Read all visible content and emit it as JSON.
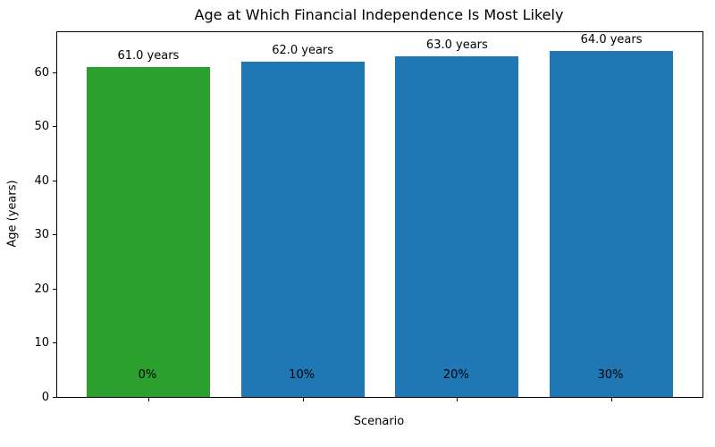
{
  "chart_data": {
    "type": "bar",
    "title": "Age at Which Financial Independence Is Most Likely",
    "xlabel": "Scenario",
    "ylabel": "Age (years)",
    "categories": [
      "0%",
      "10%",
      "20%",
      "30%"
    ],
    "values": [
      61.0,
      62.0,
      63.0,
      64.0
    ],
    "bar_labels": [
      "61.0 years",
      "62.0 years",
      "63.0 years",
      "64.0 years"
    ],
    "bar_colors": [
      "#2ca02c",
      "#1f77b4",
      "#1f77b4",
      "#1f77b4"
    ],
    "ylim": [
      0,
      67.5
    ],
    "yticks": [
      0,
      10,
      20,
      30,
      40,
      50,
      60
    ],
    "grid": false,
    "legend_position": "none",
    "spine_color": "#000000",
    "background_color": "#ffffff"
  }
}
